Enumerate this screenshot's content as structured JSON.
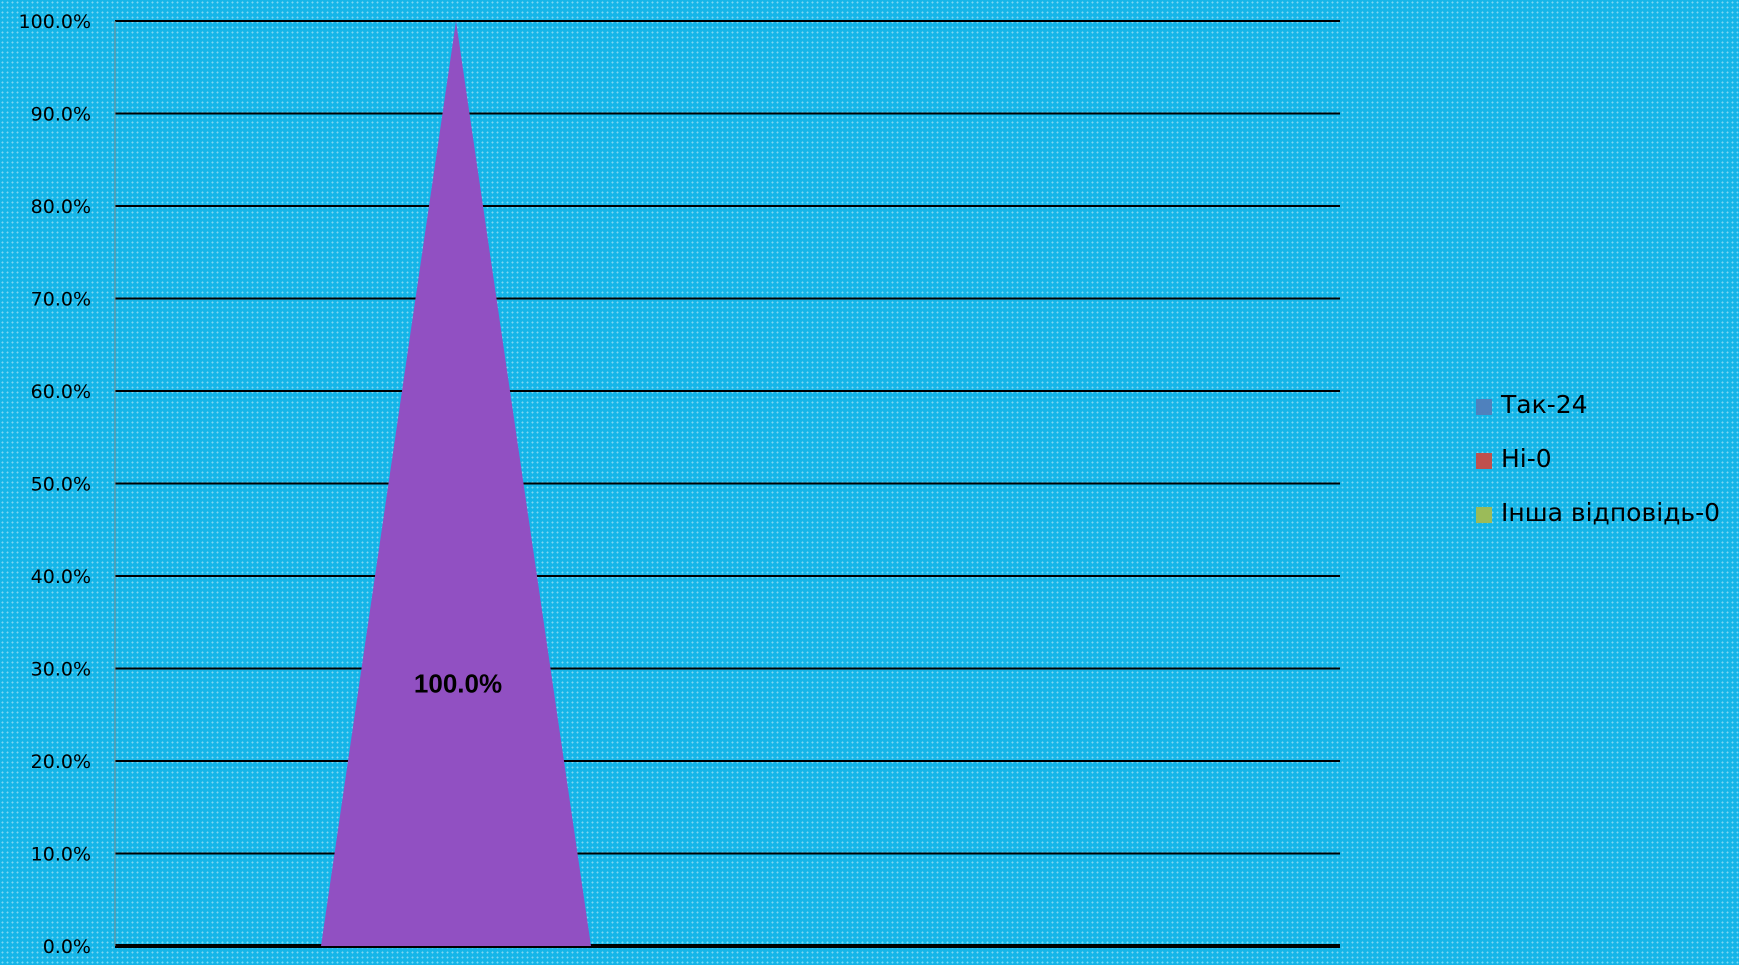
{
  "chart_data": {
    "type": "area",
    "title": "",
    "xlabel": "",
    "ylabel": "",
    "ylim": [
      0,
      100
    ],
    "yticks": [
      "0.0%",
      "10.0%",
      "20.0%",
      "30.0%",
      "40.0%",
      "50.0%",
      "60.0%",
      "70.0%",
      "80.0%",
      "90.0%",
      "100.0%"
    ],
    "grid": true,
    "legend_position": "right",
    "series": [
      {
        "name": "Так-24",
        "value": 100,
        "color": "#4f81bd",
        "label": "100.0%",
        "fill_color": "#9150c2"
      },
      {
        "name": "Ні-0",
        "value": 0,
        "color": "#c0504d"
      },
      {
        "name": "Інша відповідь-0",
        "value": 0,
        "color": "#9bbb59"
      }
    ]
  },
  "legend": {
    "items": [
      {
        "label": "Так-24",
        "color": "#4f81bd"
      },
      {
        "label": "Ні-0",
        "color": "#c0504d"
      },
      {
        "label": "Інша відповідь-0",
        "color": "#9bbb59"
      }
    ]
  }
}
